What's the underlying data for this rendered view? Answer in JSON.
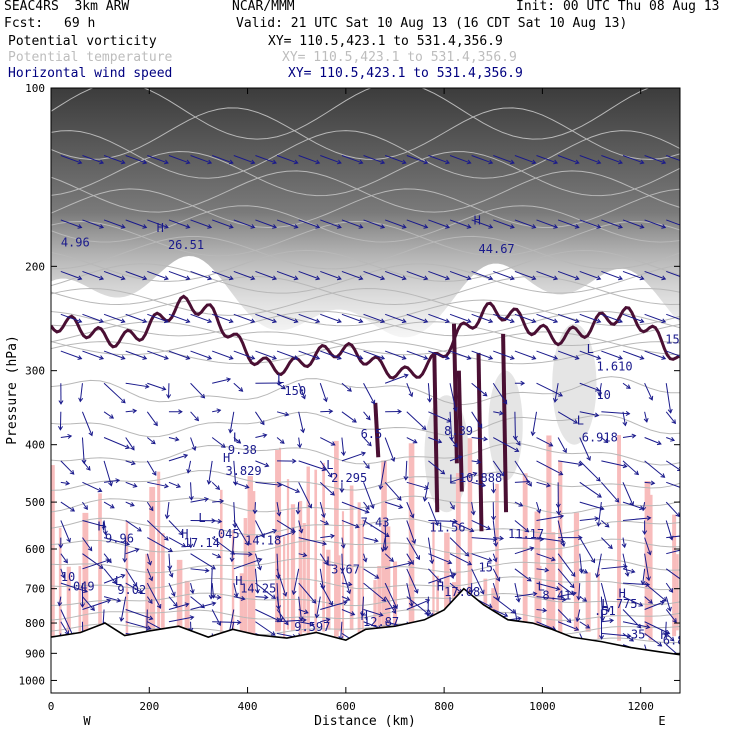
{
  "header": {
    "model": "SEAC4RS  3km ARW",
    "source": "NCAR/MMM",
    "init": "Init: 00 UTC Thu 08 Aug 13",
    "fcst_label": "Fcst:",
    "fcst_value": "69 h",
    "valid": "Valid: 21 UTC Sat 10 Aug 13 (16 CDT Sat 10 Aug 13)"
  },
  "fields": [
    {
      "name": "Potential vorticity",
      "xy": "XY= 110.5,423.1 to 531.4,356.9",
      "color": "#000000"
    },
    {
      "name": "Potential temperature",
      "xy": "XY= 110.5,423.1 to 531.4,356.9",
      "color": "#bdbdbd"
    },
    {
      "name": "Horizontal wind speed",
      "xy": "XY= 110.5,423.1 to 531.4,356.9",
      "color": "#000080"
    }
  ],
  "chart_data": {
    "type": "cross-section",
    "xlabel": "Distance (km)",
    "ylabel": "Pressure (hPa)",
    "xlim": [
      0,
      1280
    ],
    "ylim": [
      1050,
      100
    ],
    "y_scale": "log-pressure",
    "x_ticks": [
      0,
      200,
      400,
      600,
      800,
      1000,
      1200
    ],
    "y_ticks": [
      100,
      200,
      300,
      400,
      500,
      600,
      700,
      800,
      900,
      1000
    ],
    "x_end_labels": {
      "left": "W",
      "right": "E"
    },
    "terrain_surface": [
      [
        0,
        845
      ],
      [
        60,
        830
      ],
      [
        110,
        800
      ],
      [
        150,
        840
      ],
      [
        200,
        825
      ],
      [
        260,
        810
      ],
      [
        320,
        845
      ],
      [
        370,
        820
      ],
      [
        420,
        838
      ],
      [
        480,
        848
      ],
      [
        540,
        830
      ],
      [
        600,
        855
      ],
      [
        640,
        820
      ],
      [
        700,
        810
      ],
      [
        760,
        790
      ],
      [
        800,
        760
      ],
      [
        840,
        700
      ],
      [
        880,
        745
      ],
      [
        930,
        790
      ],
      [
        980,
        800
      ],
      [
        1020,
        820
      ],
      [
        1060,
        845
      ],
      [
        1120,
        860
      ],
      [
        1180,
        880
      ],
      [
        1240,
        895
      ],
      [
        1280,
        905
      ]
    ],
    "annotations": [
      {
        "text": "H",
        "x": 215,
        "y": 175
      },
      {
        "text": "26.51",
        "x": 238,
        "y": 187
      },
      {
        "text": "4.96",
        "x": 20,
        "y": 185
      },
      {
        "text": "H",
        "x": 860,
        "y": 170
      },
      {
        "text": "44.67",
        "x": 870,
        "y": 190
      },
      {
        "text": "L",
        "x": 1090,
        "y": 280
      },
      {
        "text": "1.610",
        "x": 1110,
        "y": 300
      },
      {
        "text": "L",
        "x": 1070,
        "y": 370
      },
      {
        "text": "6.918",
        "x": 1080,
        "y": 395
      },
      {
        "text": "L",
        "x": 460,
        "y": 315
      },
      {
        "text": "150",
        "x": 475,
        "y": 330
      },
      {
        "text": "L",
        "x": 370,
        "y": 395
      },
      {
        "text": "9.38",
        "x": 360,
        "y": 415
      },
      {
        "text": "H",
        "x": 350,
        "y": 428
      },
      {
        "text": "3.829",
        "x": 355,
        "y": 450
      },
      {
        "text": "L",
        "x": 560,
        "y": 440
      },
      {
        "text": "2.295",
        "x": 570,
        "y": 462
      },
      {
        "text": "L",
        "x": 810,
        "y": 465
      },
      {
        "text": "10.888",
        "x": 830,
        "y": 462
      },
      {
        "text": "H",
        "x": 95,
        "y": 558
      },
      {
        "text": "9.96",
        "x": 110,
        "y": 585
      },
      {
        "text": "H",
        "x": 265,
        "y": 575
      },
      {
        "text": "17.14",
        "x": 270,
        "y": 595
      },
      {
        "text": "L",
        "x": 300,
        "y": 540
      },
      {
        "text": ".045",
        "x": 325,
        "y": 575
      },
      {
        "text": "14.18",
        "x": 395,
        "y": 590
      },
      {
        "text": "L",
        "x": 560,
        "y": 640
      },
      {
        "text": "3.67",
        "x": 570,
        "y": 660
      },
      {
        "text": "7.43",
        "x": 630,
        "y": 550
      },
      {
        "text": "11.56",
        "x": 770,
        "y": 560
      },
      {
        "text": "11.17",
        "x": 930,
        "y": 575
      },
      {
        "text": "L",
        "x": 130,
        "y": 690
      },
      {
        "text": "9.02",
        "x": 135,
        "y": 715
      },
      {
        "text": "10",
        "x": 20,
        "y": 680
      },
      {
        "text": ".049",
        "x": 30,
        "y": 705
      },
      {
        "text": "H",
        "x": 375,
        "y": 690
      },
      {
        "text": "14.25",
        "x": 385,
        "y": 710
      },
      {
        "text": "H",
        "x": 785,
        "y": 705
      },
      {
        "text": "17.08",
        "x": 800,
        "y": 720
      },
      {
        "text": "L",
        "x": 990,
        "y": 705
      },
      {
        "text": "8.41",
        "x": 1000,
        "y": 730
      },
      {
        "text": "H",
        "x": 1155,
        "y": 725
      },
      {
        "text": "L.775",
        "x": 1120,
        "y": 755
      },
      {
        "text": ".51",
        "x": 1105,
        "y": 775
      },
      {
        "text": "H",
        "x": 630,
        "y": 790
      },
      {
        "text": "12.87",
        "x": 635,
        "y": 810
      },
      {
        "text": "9.597",
        "x": 495,
        "y": 825
      },
      {
        "text": "H",
        "x": 1240,
        "y": 852
      },
      {
        "text": "6.84",
        "x": 1245,
        "y": 870
      },
      {
        "text": "15",
        "x": 870,
        "y": 655
      },
      {
        "text": "8.39",
        "x": 800,
        "y": 385
      },
      {
        "text": "6.5",
        "x": 630,
        "y": 390
      },
      {
        "text": "10",
        "x": 1110,
        "y": 335
      },
      {
        "text": "35",
        "x": 1180,
        "y": 850
      },
      {
        "text": "15",
        "x": 1250,
        "y": 270
      }
    ]
  }
}
